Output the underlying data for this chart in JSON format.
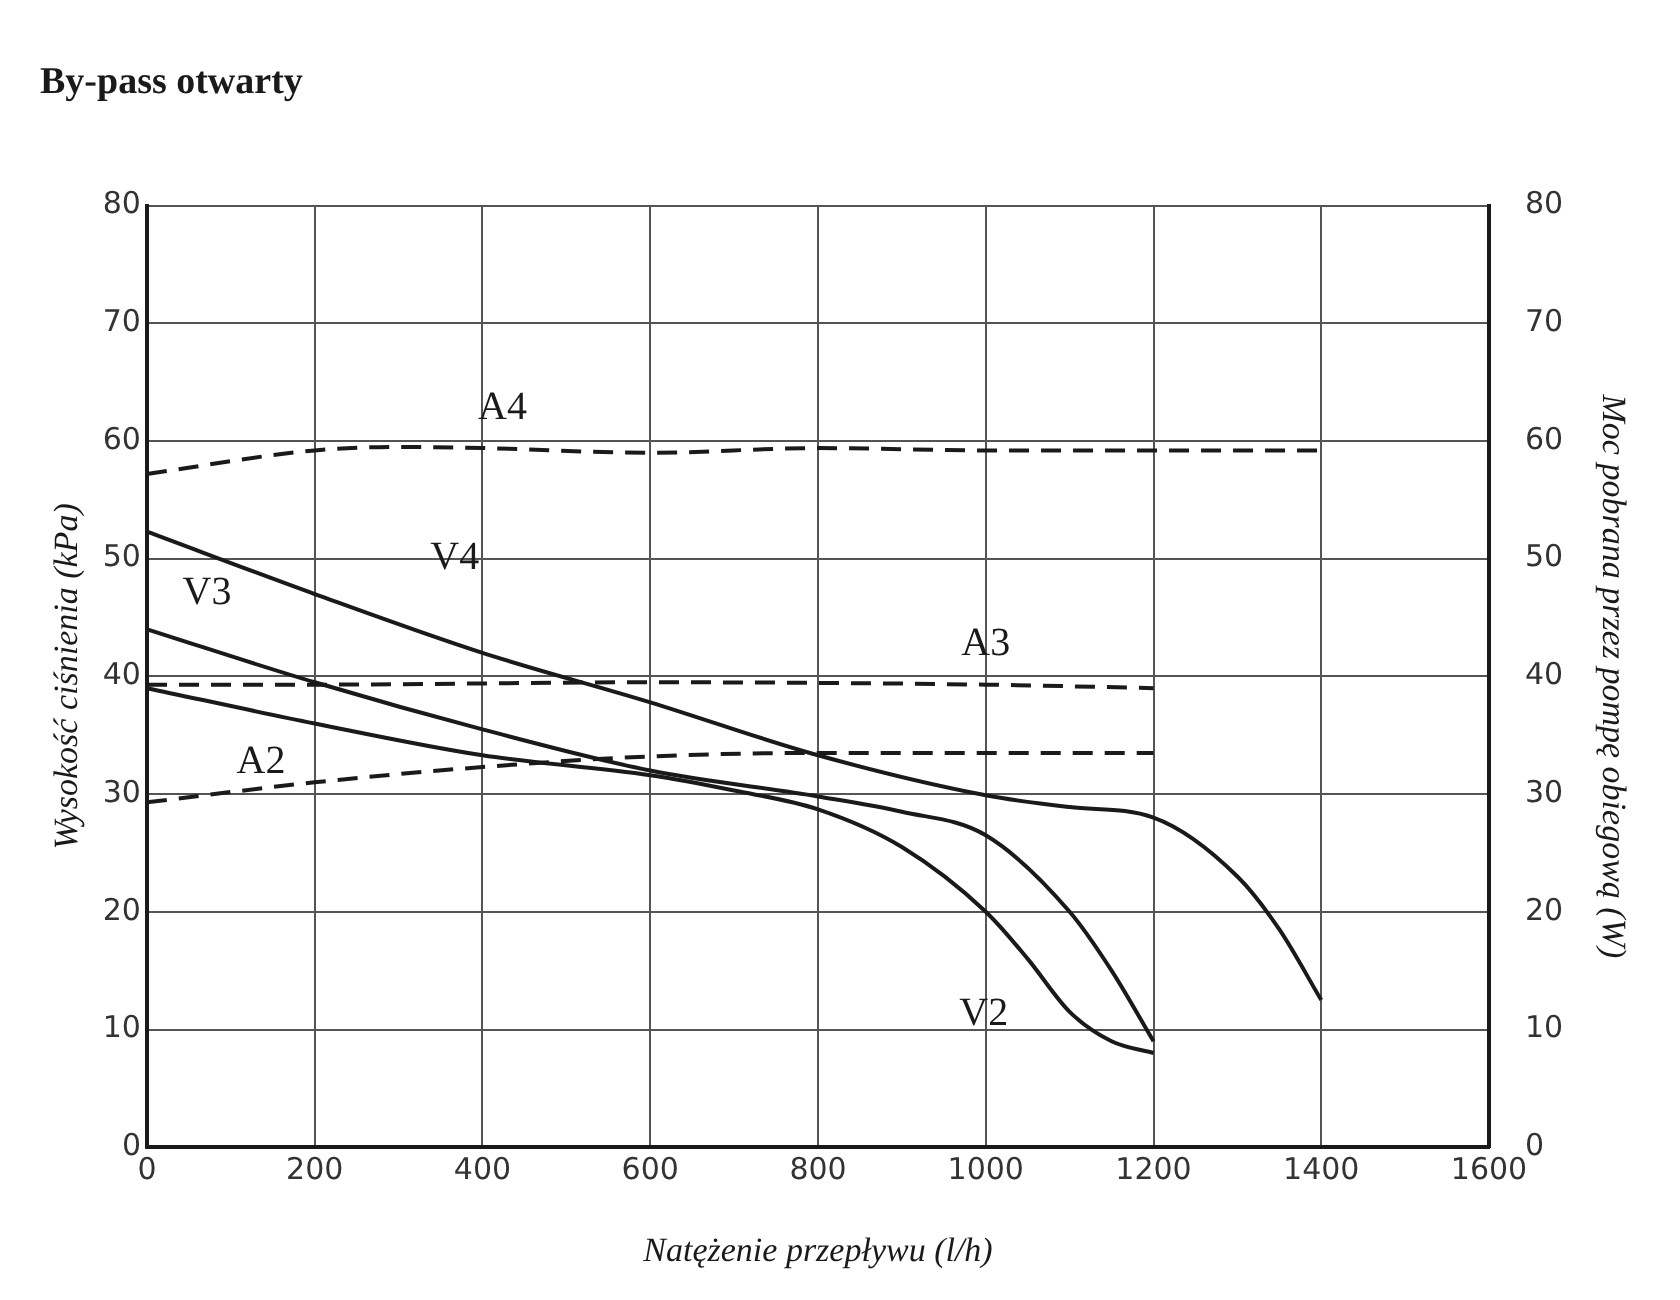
{
  "chart_data": {
    "type": "line",
    "title": "By-pass otwarty",
    "xlabel": "Natężenie przepływu (l/h)",
    "ylabel": "Wysokość ciśnienia (kPa)",
    "y2label": "Moc pobrana przez pompę obiegową (W)",
    "xlim": [
      0,
      1600
    ],
    "xticks": [
      0,
      200,
      400,
      600,
      800,
      1000,
      1200,
      1400,
      1600
    ],
    "ylim": [
      0,
      80
    ],
    "yticks": [
      0,
      10,
      20,
      30,
      40,
      50,
      60,
      70,
      80
    ],
    "y2lim": [
      0,
      80
    ],
    "y2ticks": [
      0,
      10,
      20,
      30,
      40,
      50,
      60,
      70,
      80
    ],
    "grid": true,
    "legend": false,
    "marker": "none",
    "series": [
      {
        "name": "V2",
        "color": "#1a1a1a",
        "line_style": "solid",
        "x": [
          0,
          200,
          400,
          600,
          700,
          800,
          900,
          1000,
          1050,
          1100,
          1150,
          1200
        ],
        "values": [
          39,
          36,
          33.3,
          31.6,
          30.3,
          28.7,
          25.5,
          20,
          16,
          11.5,
          9,
          8
        ]
      },
      {
        "name": "V3",
        "color": "#1a1a1a",
        "line_style": "solid",
        "x": [
          0,
          200,
          400,
          600,
          800,
          900,
          1000,
          1100,
          1150,
          1200
        ],
        "values": [
          44,
          39.5,
          35.5,
          32,
          29.8,
          28.5,
          26.5,
          20,
          15,
          9
        ]
      },
      {
        "name": "V4",
        "color": "#1a1a1a",
        "line_style": "solid",
        "x": [
          0,
          200,
          400,
          600,
          800,
          1000,
          1100,
          1200,
          1300,
          1350,
          1400
        ],
        "values": [
          52.3,
          47,
          42,
          37.8,
          33.3,
          29.9,
          28.9,
          28,
          23,
          18.5,
          12.5
        ]
      },
      {
        "name": "A2",
        "color": "#1a1a1a",
        "line_style": "dashed",
        "x": [
          0,
          200,
          400,
          600,
          800,
          1000,
          1200
        ],
        "values": [
          29.3,
          31,
          32.3,
          33.2,
          33.5,
          33.5,
          33.5
        ]
      },
      {
        "name": "A3",
        "color": "#1a1a1a",
        "line_style": "dashed",
        "x": [
          0,
          200,
          600,
          1000,
          1200
        ],
        "values": [
          39.3,
          39.3,
          39.5,
          39.3,
          39
        ]
      },
      {
        "name": "A4",
        "color": "#1a1a1a",
        "line_style": "dashed",
        "x": [
          0,
          200,
          300,
          400,
          600,
          800,
          1000,
          1200,
          1400
        ],
        "values": [
          57.2,
          59.2,
          59.5,
          59.4,
          59,
          59.4,
          59.2,
          59.2,
          59.2
        ]
      }
    ]
  }
}
